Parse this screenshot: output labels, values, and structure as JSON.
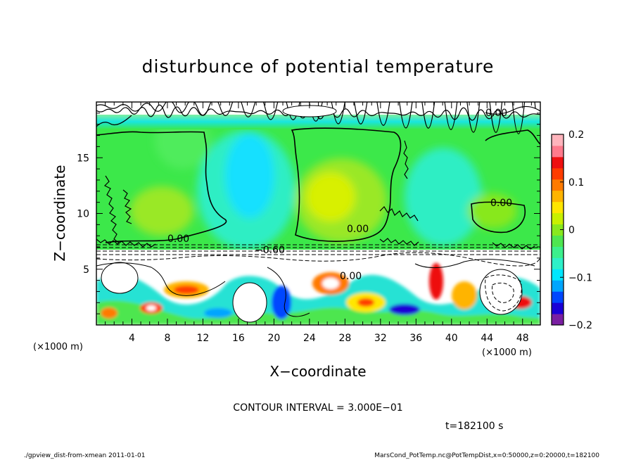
{
  "chart_data": {
    "type": "heatmap",
    "title": "disturbunce of potential temperature",
    "xlabel": "X−coordinate",
    "ylabel": "Z−coordinate",
    "x_unit": "(×1000 m)",
    "y_unit": "(×1000 m)",
    "xlim": [
      0,
      50
    ],
    "ylim": [
      0,
      20
    ],
    "x_ticks": [
      4,
      8,
      12,
      16,
      20,
      24,
      28,
      32,
      36,
      40,
      44,
      48
    ],
    "x_tick_labels": [
      "4",
      "8",
      "12",
      "16",
      "20",
      "24",
      "28",
      "32",
      "36",
      "40",
      "44",
      "48"
    ],
    "y_ticks": [
      5,
      10,
      15
    ],
    "y_tick_labels": [
      "5",
      "10",
      "15"
    ],
    "colorbar": {
      "range": [
        -0.2,
        0.2
      ],
      "ticks": [
        0.2,
        0.1,
        0,
        -0.1,
        -0.2
      ],
      "tick_labels": [
        "0.2",
        "0.1",
        "0",
        "−0.1",
        "−0.2"
      ],
      "colors": [
        "#7a1fa2",
        "#1a00d6",
        "#0047ff",
        "#00a5ff",
        "#00e6ff",
        "#2df0c8",
        "#3cf08c",
        "#4ee650",
        "#88e81e",
        "#c8f000",
        "#ffe600",
        "#ffb400",
        "#ff7a00",
        "#ff3c00",
        "#ee1010",
        "#ff7a8c",
        "#ffb4bc"
      ]
    },
    "contour_labels": [
      "0.00",
      "0.00",
      "0.00",
      "0.00",
      "−0.60",
      "0.00"
    ],
    "contour_interval_text": "CONTOUR INTERVAL = 3.000E−01",
    "time_text": "t=182100 s",
    "colors": {
      "upper_background": "#3ce84a",
      "lower_background": "#ffffff",
      "top_band": "#18e6e0",
      "contour": "#000000"
    }
  },
  "footer": {
    "left": "./gpview_dist-from-xmean   2011-01-01",
    "right": "MarsCond_PotTemp.nc@PotTempDist,x=0:50000,z=0:20000,t=182100"
  }
}
